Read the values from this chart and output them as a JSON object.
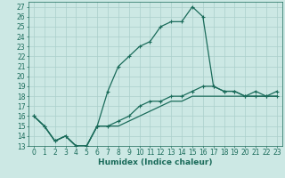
{
  "xlabel": "Humidex (Indice chaleur)",
  "bg_color": "#cce8e4",
  "grid_color": "#aacfcb",
  "line_color": "#1a6b5a",
  "xlim": [
    -0.5,
    23.5
  ],
  "ylim": [
    13,
    27.5
  ],
  "xticks": [
    0,
    1,
    2,
    3,
    4,
    5,
    6,
    7,
    8,
    9,
    10,
    11,
    12,
    13,
    14,
    15,
    16,
    17,
    18,
    19,
    20,
    21,
    22,
    23
  ],
  "yticks": [
    13,
    14,
    15,
    16,
    17,
    18,
    19,
    20,
    21,
    22,
    23,
    24,
    25,
    26,
    27
  ],
  "curve1_x": [
    0,
    1,
    2,
    3,
    4,
    5,
    6,
    7,
    8,
    9,
    10,
    11,
    12,
    13,
    14,
    15,
    16,
    17,
    18,
    19,
    20,
    21,
    22,
    23
  ],
  "curve1_y": [
    16.0,
    15.0,
    13.5,
    14.0,
    13.0,
    13.0,
    15.0,
    18.5,
    21.0,
    22.0,
    23.0,
    23.5,
    25.0,
    25.5,
    25.5,
    27.0,
    26.0,
    19.0,
    18.5,
    18.5,
    18.0,
    18.5,
    18.0,
    18.0
  ],
  "curve2_x": [
    0,
    1,
    2,
    3,
    4,
    5,
    6,
    7,
    8,
    9,
    10,
    11,
    12,
    13,
    14,
    15,
    16,
    17,
    18,
    19,
    20,
    21,
    22,
    23
  ],
  "curve2_y": [
    16.0,
    15.0,
    13.5,
    14.0,
    13.0,
    13.0,
    15.0,
    15.0,
    15.5,
    16.0,
    17.0,
    17.5,
    17.5,
    18.0,
    18.0,
    18.5,
    19.0,
    19.0,
    18.5,
    18.5,
    18.0,
    18.0,
    18.0,
    18.5
  ],
  "curve3_x": [
    0,
    1,
    2,
    3,
    4,
    5,
    6,
    7,
    8,
    9,
    10,
    11,
    12,
    13,
    14,
    15,
    16,
    17,
    18,
    19,
    20,
    21,
    22,
    23
  ],
  "curve3_y": [
    16.0,
    15.0,
    13.5,
    14.0,
    13.0,
    13.0,
    15.0,
    15.0,
    15.0,
    15.5,
    16.0,
    16.5,
    17.0,
    17.5,
    17.5,
    18.0,
    18.0,
    18.0,
    18.0,
    18.0,
    18.0,
    18.0,
    18.0,
    18.0
  ],
  "tick_fontsize": 5.5,
  "xlabel_fontsize": 6.5
}
